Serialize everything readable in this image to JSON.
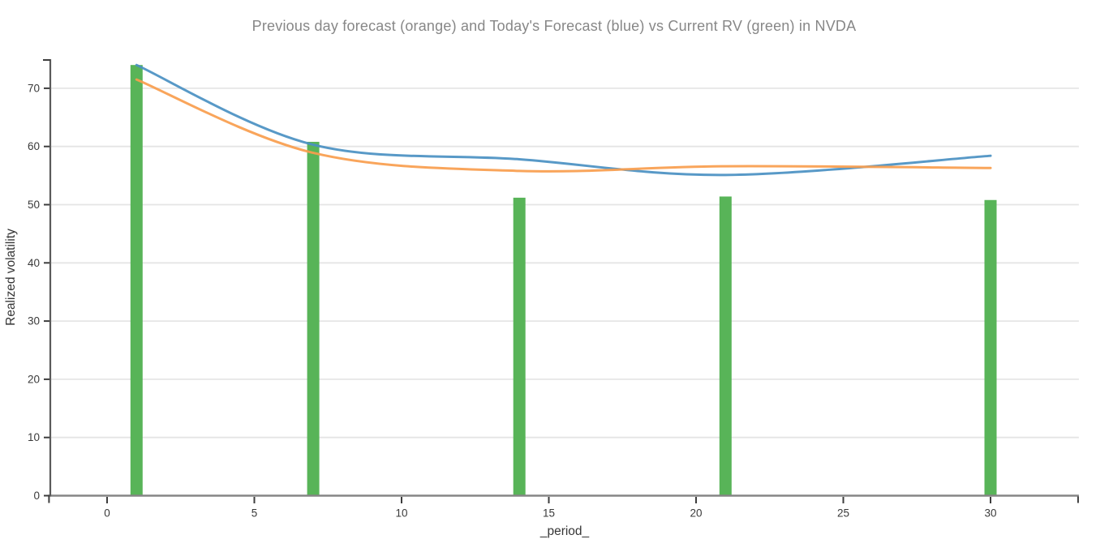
{
  "chart_data": {
    "type": "bar",
    "subtype": "bars-with-smooth-lines",
    "title": "Previous day forecast (orange) and Today's Forecast (blue) vs Current RV (green) in NVDA",
    "xlabel": "_period_",
    "ylabel": "Realized volatility",
    "x": [
      1,
      7,
      14,
      21,
      30
    ],
    "series": [
      {
        "name": "Current RV",
        "kind": "bar",
        "color": "#58b458",
        "values": [
          74.0,
          60.8,
          51.2,
          51.4,
          50.8
        ]
      },
      {
        "name": "Today's Forecast",
        "kind": "line",
        "color": "#4a90c2",
        "values": [
          74.0,
          60.3,
          57.8,
          55.1,
          58.4
        ]
      },
      {
        "name": "Previous day forecast",
        "kind": "line",
        "color": "#f99d4d",
        "values": [
          71.5,
          58.9,
          55.8,
          56.6,
          56.3
        ]
      }
    ],
    "xticks": [
      0,
      5,
      10,
      15,
      20,
      25,
      30
    ],
    "yticks": [
      0,
      10,
      20,
      30,
      40,
      50,
      60,
      70
    ],
    "xlim": [
      -2,
      33
    ],
    "ylim": [
      0,
      75
    ],
    "grid": "horizontal",
    "legend_position": "none",
    "colors": {
      "bar_green": "#58b458",
      "line_blue": "#4a90c2",
      "line_orange": "#f99d4d",
      "title_text": "#878787",
      "axis_label_text": "#363636",
      "tick_label_text": "#3a3a3a",
      "tick_mark": "#3d3d3d",
      "x_spine": "#858585",
      "y_spine": "#5a5a5a",
      "gridline": "#e5e5e5",
      "background": "#ffffff"
    }
  }
}
